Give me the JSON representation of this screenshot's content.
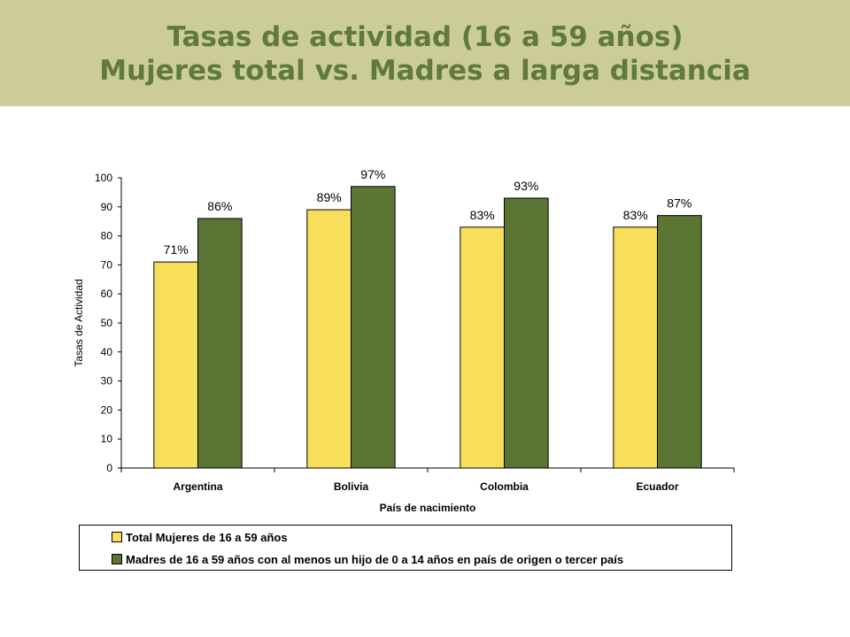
{
  "header": {
    "title_line1": "Tasas de actividad (16 a 59 años)",
    "title_line2": "Mujeres total vs. Madres a larga distancia",
    "banner_color": "#cccc99",
    "title_color": "#5f7a3a"
  },
  "chart_data": {
    "type": "bar",
    "categories": [
      "Argentina",
      "Bolivia",
      "Colombia",
      "Ecuador"
    ],
    "series": [
      {
        "name": "Total Mujeres de 16 a 59 años",
        "values": [
          71,
          89,
          83,
          83
        ],
        "labels": [
          "71%",
          "89%",
          "83%",
          "83%"
        ],
        "color": "#f7df5c"
      },
      {
        "name": "Madres de 16 a 59 años con al menos un hijo de 0 a 14 años en país de origen o tercer país",
        "values": [
          86,
          97,
          93,
          87
        ],
        "labels": [
          "86%",
          "97%",
          "93%",
          "87%"
        ],
        "color": "#5a7534"
      }
    ],
    "xlabel": "País de nacimiento",
    "ylabel": "Tasas de Actividad",
    "ylim": [
      0,
      100
    ],
    "yticks": [
      "0",
      "10",
      "20",
      "30",
      "40",
      "50",
      "60",
      "70",
      "80",
      "90",
      "100"
    ],
    "grid": false,
    "legend_position": "bottom"
  }
}
